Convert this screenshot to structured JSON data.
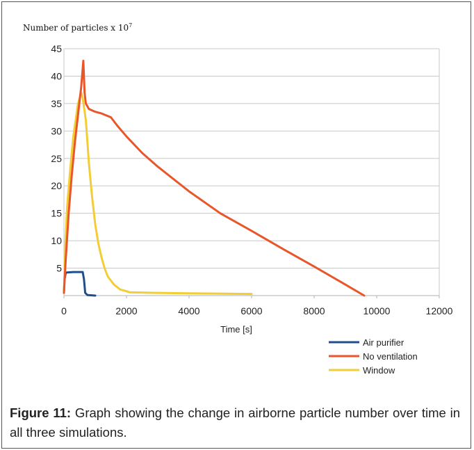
{
  "chart_data": {
    "type": "line",
    "ylabel_prefix": "Number of particles x 10",
    "ylabel_exponent": "7",
    "xlabel": "Time [s]",
    "xlim": [
      0,
      12000
    ],
    "ylim": [
      0,
      45
    ],
    "x_ticks": [
      "0",
      "2000",
      "4000",
      "6000",
      "8000",
      "10000",
      "12000"
    ],
    "y_ticks": [
      "5",
      "10",
      "15",
      "20",
      "25",
      "30",
      "35",
      "40",
      "45"
    ],
    "grid": "horizontal",
    "legend_position": "bottom-right",
    "series": [
      {
        "name": "Air purifier",
        "color": "#1f4e8c",
        "points": [
          [
            0,
            0.5
          ],
          [
            20,
            3
          ],
          [
            60,
            4.2
          ],
          [
            300,
            4.3
          ],
          [
            600,
            4.3
          ],
          [
            640,
            3
          ],
          [
            680,
            0.5
          ],
          [
            750,
            0.1
          ],
          [
            1000,
            0
          ]
        ]
      },
      {
        "name": "No ventilation",
        "color": "#e8562a",
        "points": [
          [
            0,
            0.5
          ],
          [
            50,
            6
          ],
          [
            150,
            15
          ],
          [
            250,
            22
          ],
          [
            350,
            28
          ],
          [
            450,
            33
          ],
          [
            550,
            38
          ],
          [
            620,
            42.8
          ],
          [
            660,
            37
          ],
          [
            700,
            35
          ],
          [
            800,
            34
          ],
          [
            1000,
            33.5
          ],
          [
            1200,
            33.2
          ],
          [
            1500,
            32.5
          ],
          [
            1700,
            31
          ],
          [
            2000,
            29
          ],
          [
            2500,
            26
          ],
          [
            3000,
            23.5
          ],
          [
            4000,
            19
          ],
          [
            5000,
            15
          ],
          [
            6000,
            11.8
          ],
          [
            7000,
            8.5
          ],
          [
            8000,
            5.3
          ],
          [
            9000,
            2
          ],
          [
            9600,
            0
          ]
        ]
      },
      {
        "name": "Window",
        "color": "#f2cd35",
        "points": [
          [
            0,
            0.5
          ],
          [
            50,
            10
          ],
          [
            100,
            16
          ],
          [
            200,
            23
          ],
          [
            300,
            29
          ],
          [
            400,
            33
          ],
          [
            450,
            35
          ],
          [
            550,
            37
          ],
          [
            600,
            36
          ],
          [
            700,
            32
          ],
          [
            800,
            24
          ],
          [
            900,
            18
          ],
          [
            1000,
            13
          ],
          [
            1100,
            9.5
          ],
          [
            1200,
            7
          ],
          [
            1300,
            5
          ],
          [
            1400,
            3.5
          ],
          [
            1600,
            2
          ],
          [
            1800,
            1.1
          ],
          [
            2000,
            0.8
          ],
          [
            2100,
            0.6
          ],
          [
            3000,
            0.5
          ],
          [
            4000,
            0.4
          ],
          [
            6000,
            0.3
          ]
        ]
      }
    ]
  },
  "caption": {
    "label": "Figure 11:",
    "text": " Graph showing the change in airborne particle number over time in all three simulations."
  }
}
